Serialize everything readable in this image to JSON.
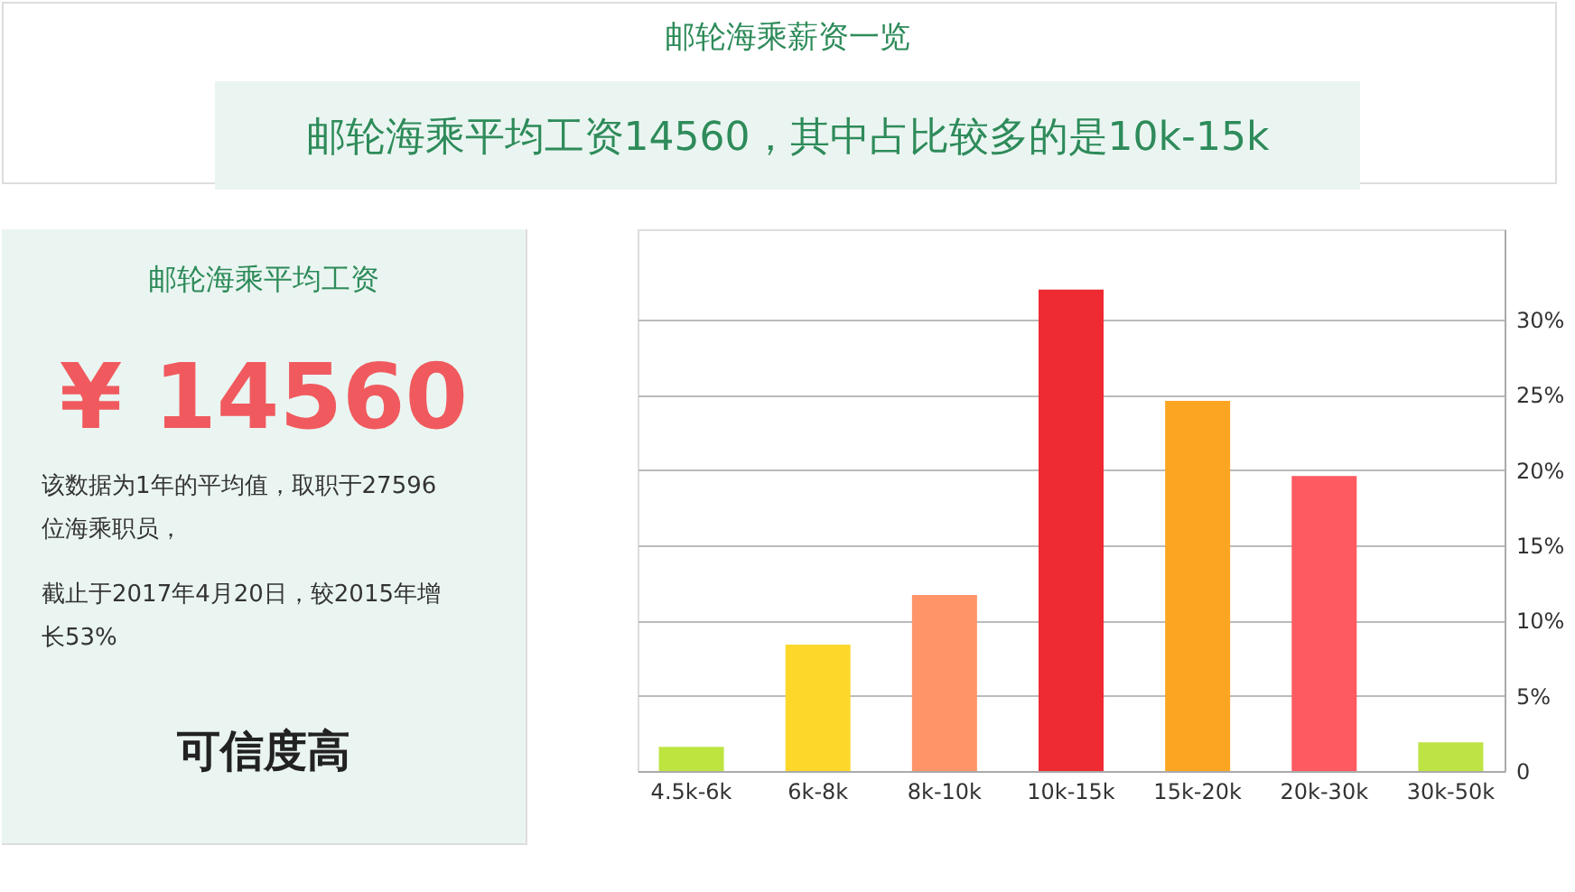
{
  "chart_data": [
    {
      "type": "bar",
      "title": "邮轮海乘薪资一览",
      "subtitle": "邮轮海乘平均工资14560，其中占比较多的是10k-15k",
      "categories": [
        "4.5k-6k",
        "6k-8k",
        "8k-10k",
        "10k-15k",
        "15k-20k",
        "20k-30k",
        "30k-50k"
      ],
      "values": [
        1.6,
        8.4,
        11.7,
        32.0,
        24.6,
        19.6,
        1.9
      ],
      "colors": [
        "#bde43f",
        "#fdd82b",
        "#fe9468",
        "#ee2a33",
        "#fca523",
        "#fe5a61",
        "#bee344"
      ],
      "ylim": [
        0,
        36
      ],
      "yticks": [
        0,
        {
          "value": 5,
          "label": "5%"
        },
        {
          "value": 10,
          "label": "10%"
        },
        {
          "value": 15,
          "label": "15%"
        },
        {
          "value": 20,
          "label": "20%"
        },
        {
          "value": 25,
          "label": "25%"
        },
        {
          "value": 30,
          "label": "30%"
        }
      ],
      "grid": "y"
    },
    {
      "type": "other",
      "title": "邮轮海乘平均工资",
      "annotations": [
        "¥ 14560",
        "该数据为1年的平均值，取职于27596位海乘职员，",
        "截止于2017年4月20日，较2015年增长53%",
        "可信度高"
      ]
    }
  ]
}
